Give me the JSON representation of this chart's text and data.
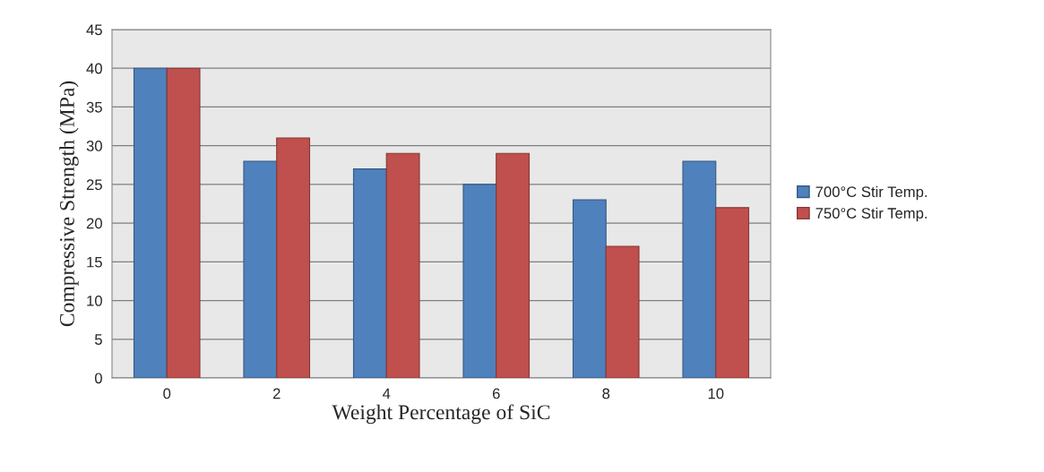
{
  "chart_data": {
    "type": "bar",
    "xlabel": "Weight Percentage of SiC",
    "ylabel": "Compressive Strength (MPa)",
    "categories": [
      "0",
      "2",
      "4",
      "6",
      "8",
      "10"
    ],
    "series": [
      {
        "name": "700°C Stir Temp.",
        "color": "#4f81bd",
        "values": [
          40,
          28,
          27,
          25,
          23,
          28
        ]
      },
      {
        "name": "750°C Stir Temp.",
        "color": "#c0504d",
        "values": [
          40,
          31,
          29,
          29,
          17,
          22
        ]
      }
    ],
    "ylim": [
      0,
      45
    ],
    "yticks": [
      0,
      5,
      10,
      15,
      20,
      25,
      30,
      35,
      40,
      45
    ],
    "grid": "y",
    "legend": "right"
  }
}
